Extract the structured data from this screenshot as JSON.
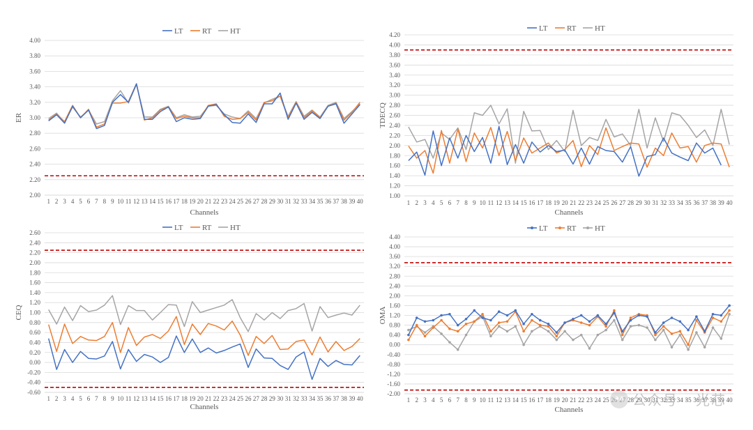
{
  "watermark": {
    "text": "公众号 · 光芯"
  },
  "colors": {
    "LT": "#4472C4",
    "RT": "#ED7D31",
    "HT": "#A5A5A5",
    "limit": "#C00000",
    "grid": "#D9D9D9",
    "axis_text": "#595959"
  },
  "chart_data": [
    {
      "id": "er",
      "type": "line",
      "title": "",
      "xlabel": "Channels",
      "ylabel": "ER",
      "ylim": [
        2.0,
        4.0
      ],
      "ytick_step": 0.2,
      "y_decimals": 2,
      "legend": "top-center",
      "legend_markers": false,
      "limit_line": 2.25,
      "categories": [
        "1",
        "2",
        "3",
        "4",
        "5",
        "6",
        "7",
        "8",
        "9",
        "10",
        "11",
        "12",
        "13",
        "14",
        "15",
        "16",
        "17",
        "18",
        "19",
        "20",
        "21",
        "22",
        "23",
        "24",
        "25",
        "26",
        "27",
        "28",
        "29",
        "30",
        "31",
        "32",
        "33",
        "34",
        "35",
        "36",
        "37",
        "38",
        "39",
        "40"
      ],
      "series": [
        {
          "name": "LT",
          "values": [
            2.96,
            3.04,
            2.93,
            3.15,
            3.0,
            3.1,
            2.86,
            2.9,
            3.2,
            3.3,
            3.2,
            3.44,
            2.98,
            2.98,
            3.08,
            3.14,
            2.95,
            3.0,
            2.98,
            2.99,
            3.15,
            3.17,
            3.04,
            2.94,
            2.93,
            3.05,
            2.94,
            3.18,
            3.18,
            3.32,
            2.98,
            3.19,
            2.98,
            3.07,
            2.99,
            3.15,
            3.18,
            2.93,
            3.05,
            3.17
          ]
        },
        {
          "name": "RT",
          "values": [
            2.97,
            3.05,
            2.95,
            3.16,
            3.0,
            3.11,
            2.88,
            2.92,
            3.19,
            3.19,
            3.21,
            3.44,
            2.97,
            3.0,
            3.1,
            3.14,
            2.99,
            3.02,
            3.0,
            3.0,
            3.16,
            3.18,
            3.02,
            2.98,
            2.99,
            3.07,
            2.97,
            3.2,
            3.22,
            3.28,
            3.0,
            3.2,
            3.0,
            3.09,
            3.0,
            3.15,
            3.19,
            2.97,
            3.07,
            3.2
          ]
        },
        {
          "name": "HT",
          "values": [
            2.99,
            3.06,
            2.94,
            3.14,
            3.01,
            3.1,
            2.92,
            2.95,
            3.22,
            3.35,
            3.19,
            3.43,
            3.01,
            3.01,
            3.11,
            3.15,
            3.0,
            3.04,
            3.01,
            3.02,
            3.15,
            3.16,
            3.05,
            3.01,
            2.99,
            3.09,
            2.99,
            3.19,
            3.24,
            3.28,
            3.02,
            3.21,
            3.02,
            3.1,
            3.01,
            3.16,
            3.2,
            2.99,
            3.08,
            3.18
          ]
        }
      ]
    },
    {
      "id": "tdecq",
      "type": "line",
      "title": "",
      "xlabel": "Channels",
      "ylabel": "TDECQ",
      "ylim": [
        1.0,
        4.2
      ],
      "ytick_step": 0.2,
      "y_decimals": 2,
      "legend": "top-center",
      "legend_markers": false,
      "limit_line": 3.9,
      "categories": [
        "1",
        "2",
        "3",
        "4",
        "5",
        "6",
        "7",
        "8",
        "9",
        "10",
        "11",
        "12",
        "13",
        "14",
        "15",
        "16",
        "17",
        "18",
        "19",
        "20",
        "21",
        "22",
        "23",
        "24",
        "25",
        "26",
        "27",
        "28",
        "29",
        "30",
        "31",
        "32",
        "33",
        "34",
        "35",
        "36",
        "37",
        "38",
        "39",
        "40"
      ],
      "series": [
        {
          "name": "LT",
          "values": [
            1.7,
            1.87,
            1.41,
            2.29,
            1.6,
            2.15,
            1.75,
            2.2,
            1.88,
            2.16,
            1.65,
            2.38,
            1.62,
            2.02,
            1.65,
            2.07,
            1.87,
            2.0,
            1.88,
            1.91,
            1.63,
            1.95,
            1.63,
            1.98,
            1.9,
            1.88,
            1.67,
            1.98,
            1.39,
            1.78,
            1.82,
            2.15,
            1.85,
            1.77,
            1.7,
            2.05,
            1.85,
            1.95,
            1.61,
            null
          ]
        },
        {
          "name": "RT",
          "values": [
            1.99,
            1.75,
            1.9,
            1.45,
            2.3,
            1.65,
            2.33,
            1.68,
            2.25,
            1.95,
            2.36,
            1.8,
            2.28,
            1.7,
            2.15,
            1.85,
            1.95,
            2.05,
            1.85,
            1.92,
            2.1,
            1.58,
            2.0,
            1.82,
            2.35,
            1.9,
            1.98,
            2.05,
            2.03,
            1.57,
            1.95,
            1.8,
            2.25,
            1.95,
            1.98,
            1.67,
            2.0,
            2.05,
            2.03,
            1.57
          ]
        },
        {
          "name": "HT",
          "values": [
            2.37,
            2.07,
            2.12,
            1.75,
            2.25,
            2.12,
            2.35,
            1.92,
            2.65,
            2.6,
            2.8,
            2.43,
            2.73,
            1.65,
            2.68,
            2.29,
            2.3,
            1.92,
            2.1,
            1.88,
            2.7,
            2.0,
            2.16,
            2.1,
            2.52,
            2.17,
            2.23,
            2.0,
            2.72,
            1.95,
            2.55,
            2.08,
            2.65,
            2.6,
            2.4,
            2.16,
            2.31,
            2.0,
            2.72,
            2.02
          ]
        }
      ]
    },
    {
      "id": "ceq",
      "type": "line",
      "title": "",
      "xlabel": "Channels",
      "ylabel": "CEQ",
      "ylim": [
        -0.6,
        2.6
      ],
      "ytick_step": 0.2,
      "y_decimals": 2,
      "legend": "top-center",
      "legend_markers": false,
      "limit_lines": [
        2.25,
        -0.5
      ],
      "categories": [
        "1",
        "2",
        "3",
        "4",
        "5",
        "6",
        "7",
        "8",
        "9",
        "10",
        "11",
        "12",
        "13",
        "14",
        "15",
        "16",
        "17",
        "18",
        "19",
        "20",
        "21",
        "22",
        "23",
        "24",
        "25",
        "26",
        "27",
        "28",
        "29",
        "30",
        "31",
        "32",
        "33",
        "34",
        "35",
        "36",
        "37",
        "38",
        "39",
        "40"
      ],
      "series": [
        {
          "name": "LT",
          "values": [
            0.48,
            -0.14,
            0.26,
            0.0,
            0.22,
            0.08,
            0.07,
            0.13,
            0.42,
            -0.13,
            0.26,
            0.02,
            0.16,
            0.11,
            0.0,
            0.1,
            0.53,
            0.2,
            0.47,
            0.2,
            0.29,
            0.19,
            0.24,
            0.31,
            0.37,
            -0.1,
            0.27,
            0.09,
            0.08,
            -0.06,
            -0.14,
            0.11,
            0.21,
            -0.34,
            0.08,
            -0.08,
            0.04,
            -0.04,
            -0.05,
            0.14
          ]
        },
        {
          "name": "RT",
          "values": [
            0.76,
            0.22,
            0.77,
            0.38,
            0.52,
            0.45,
            0.44,
            0.52,
            0.8,
            0.2,
            0.7,
            0.34,
            0.51,
            0.56,
            0.48,
            0.63,
            0.92,
            0.36,
            0.77,
            0.56,
            0.78,
            0.73,
            0.65,
            0.83,
            0.55,
            0.14,
            0.52,
            0.38,
            0.54,
            0.26,
            0.27,
            0.42,
            0.45,
            0.15,
            0.51,
            0.21,
            0.42,
            0.24,
            0.32,
            0.48
          ]
        },
        {
          "name": "HT",
          "values": [
            1.06,
            0.77,
            1.11,
            0.84,
            1.14,
            1.02,
            1.05,
            1.15,
            1.34,
            0.76,
            1.14,
            1.04,
            1.04,
            0.85,
            1.0,
            1.16,
            1.15,
            0.72,
            1.22,
            1.0,
            1.05,
            1.1,
            1.15,
            1.26,
            0.9,
            0.62,
            0.98,
            0.85,
            1.0,
            0.88,
            1.04,
            1.08,
            1.18,
            0.63,
            1.12,
            0.9,
            0.95,
            0.99,
            0.95,
            1.15
          ]
        }
      ]
    },
    {
      "id": "oma",
      "type": "line",
      "title": "",
      "xlabel": "Channels",
      "ylabel": "OMA",
      "ylim": [
        -2.0,
        4.4
      ],
      "ytick_step": 0.4,
      "y_decimals": 2,
      "legend": "top-center",
      "legend_markers": true,
      "limit_lines": [
        3.35,
        -1.85
      ],
      "categories": [
        "1",
        "2",
        "3",
        "4",
        "5",
        "6",
        "7",
        "8",
        "9",
        "10",
        "11",
        "12",
        "13",
        "14",
        "15",
        "16",
        "17",
        "18",
        "19",
        "20",
        "21",
        "22",
        "23",
        "24",
        "25",
        "26",
        "27",
        "28",
        "29",
        "30",
        "31",
        "32",
        "33",
        "34",
        "35",
        "36",
        "37",
        "38",
        "39",
        "40"
      ],
      "series": [
        {
          "name": "LT",
          "values": [
            0.4,
            1.1,
            0.95,
            1.0,
            1.2,
            1.25,
            0.8,
            1.05,
            1.4,
            1.1,
            1.0,
            1.35,
            1.2,
            1.4,
            0.85,
            1.25,
            1.0,
            0.85,
            0.5,
            0.9,
            1.05,
            1.2,
            0.95,
            1.2,
            0.85,
            1.3,
            0.55,
            1.0,
            1.2,
            1.15,
            0.5,
            0.9,
            1.1,
            0.95,
            0.6,
            1.15,
            0.55,
            1.25,
            1.2,
            1.6
          ]
        },
        {
          "name": "RT",
          "values": [
            0.2,
            0.8,
            0.35,
            0.7,
            1.0,
            0.65,
            0.55,
            0.85,
            0.95,
            1.25,
            0.55,
            0.9,
            0.95,
            1.35,
            0.55,
            1.0,
            0.8,
            0.75,
            0.35,
            0.9,
            1.0,
            0.9,
            0.8,
            1.15,
            0.75,
            1.4,
            0.4,
            1.1,
            1.25,
            1.2,
            0.4,
            0.75,
            0.45,
            0.55,
            0.0,
            1.0,
            0.5,
            1.1,
            0.95,
            1.4
          ]
        },
        {
          "name": "HT",
          "values": [
            0.6,
            0.75,
            0.5,
            0.75,
            0.45,
            0.1,
            -0.2,
            0.4,
            0.95,
            1.15,
            0.35,
            0.75,
            0.55,
            0.75,
            0.0,
            0.55,
            0.75,
            0.55,
            0.2,
            0.55,
            0.2,
            0.4,
            -0.15,
            0.4,
            0.6,
            1.0,
            0.2,
            0.75,
            0.8,
            0.7,
            0.2,
            0.6,
            -0.1,
            0.4,
            -0.2,
            0.5,
            -0.1,
            0.7,
            0.25,
            1.25
          ]
        }
      ]
    }
  ]
}
